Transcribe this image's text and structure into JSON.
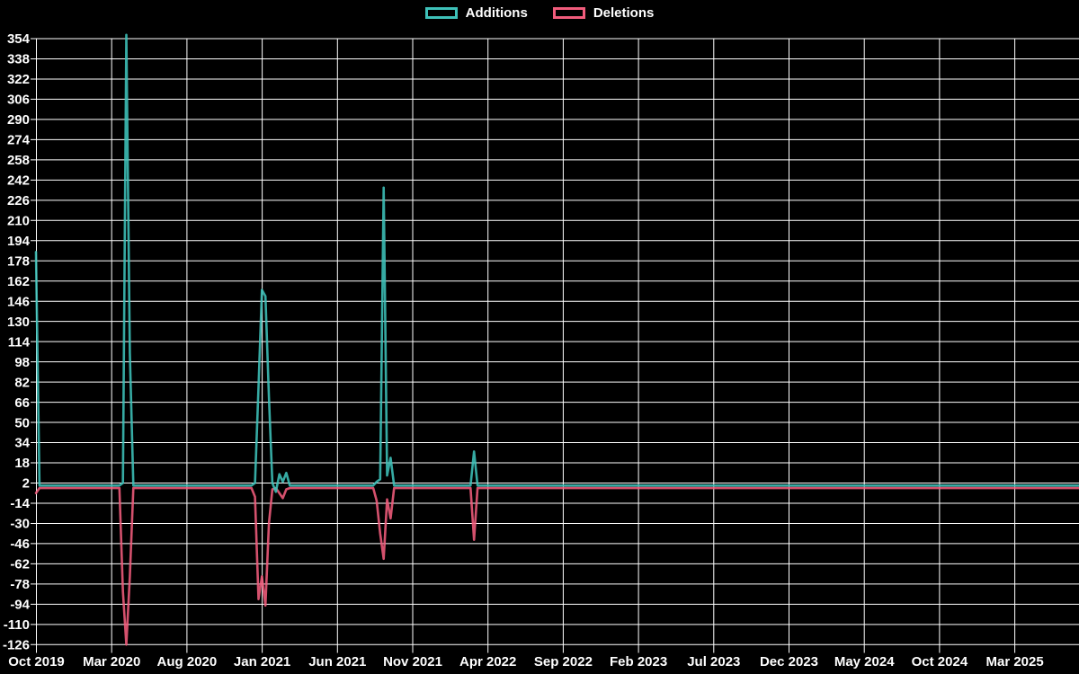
{
  "legend": {
    "additions_label": "Additions",
    "deletions_label": "Deletions"
  },
  "colors": {
    "background": "#000000",
    "grid": "#ffffff",
    "text": "#ffffff",
    "additions": "#3ec1b9",
    "deletions": "#f15c7c"
  },
  "chart_data": {
    "type": "line",
    "legend_position": "top-center",
    "grid": true,
    "y_axis": {
      "min": -126,
      "max": 354,
      "tick_step": 16,
      "tick_labels": [
        "354",
        "338",
        "322",
        "306",
        "290",
        "274",
        "258",
        "242",
        "226",
        "210",
        "194",
        "178",
        "162",
        "146",
        "130",
        "114",
        "98",
        "82",
        "66",
        "50",
        "34",
        "18",
        "2",
        "-14",
        "-30",
        "-46",
        "-62",
        "-78",
        "-94",
        "-110",
        "-126"
      ]
    },
    "x_axis": {
      "tick_labels": [
        "Oct 2019",
        "Mar 2020",
        "Aug 2020",
        "Jan 2021",
        "Jun 2021",
        "Nov 2021",
        "Apr 2022",
        "Sep 2022",
        "Feb 2023",
        "Jul 2023",
        "Dec 2023",
        "May 2024",
        "Oct 2024",
        "Mar 2025"
      ],
      "start_week": "2019-09-29",
      "end_week": "2025-06-27",
      "label_interval_months": 5
    },
    "weeks_total": 301,
    "series": [
      {
        "name": "Additions",
        "color": "#3ec1b9",
        "baseline": 0
      },
      {
        "name": "Deletions",
        "color": "#f15c7c",
        "baseline": -2
      }
    ],
    "events": [
      {
        "week": 0,
        "approx_date": "2019-09-29",
        "additions": 185,
        "deletions": -6
      },
      {
        "week": 25,
        "approx_date": "2020-03-22",
        "additions": 2,
        "deletions": -84
      },
      {
        "week": 26,
        "approx_date": "2020-03-29",
        "additions": 357,
        "deletions": -126
      },
      {
        "week": 27,
        "approx_date": "2020-04-05",
        "additions": 105,
        "deletions": -72
      },
      {
        "week": 63,
        "approx_date": "2020-12-13",
        "additions": 2,
        "deletions": -9
      },
      {
        "week": 64,
        "approx_date": "2020-12-20",
        "additions": 78,
        "deletions": -90
      },
      {
        "week": 65,
        "approx_date": "2020-12-27",
        "additions": 155,
        "deletions": -72
      },
      {
        "week": 66,
        "approx_date": "2021-01-03",
        "additions": 150,
        "deletions": -95
      },
      {
        "week": 67,
        "approx_date": "2021-01-10",
        "additions": 70,
        "deletions": -30
      },
      {
        "week": 68,
        "approx_date": "2021-01-17",
        "additions": 2,
        "deletions": -3
      },
      {
        "week": 69,
        "approx_date": "2021-01-24",
        "additions": -5,
        "deletions": -2
      },
      {
        "week": 70,
        "approx_date": "2021-01-31",
        "additions": 9,
        "deletions": -6
      },
      {
        "week": 71,
        "approx_date": "2021-02-07",
        "additions": 3,
        "deletions": -10
      },
      {
        "week": 72,
        "approx_date": "2021-02-14",
        "additions": 10,
        "deletions": -3
      },
      {
        "week": 98,
        "approx_date": "2021-08-15",
        "additions": 3,
        "deletions": -12
      },
      {
        "week": 99,
        "approx_date": "2021-08-22",
        "additions": 5,
        "deletions": -38
      },
      {
        "week": 100,
        "approx_date": "2021-08-29",
        "additions": 236,
        "deletions": -58
      },
      {
        "week": 101,
        "approx_date": "2021-09-05",
        "additions": 8,
        "deletions": -11
      },
      {
        "week": 102,
        "approx_date": "2021-09-12",
        "additions": 22,
        "deletions": -26
      },
      {
        "week": 126,
        "approx_date": "2022-02-27",
        "additions": 27,
        "deletions": -43
      }
    ]
  }
}
